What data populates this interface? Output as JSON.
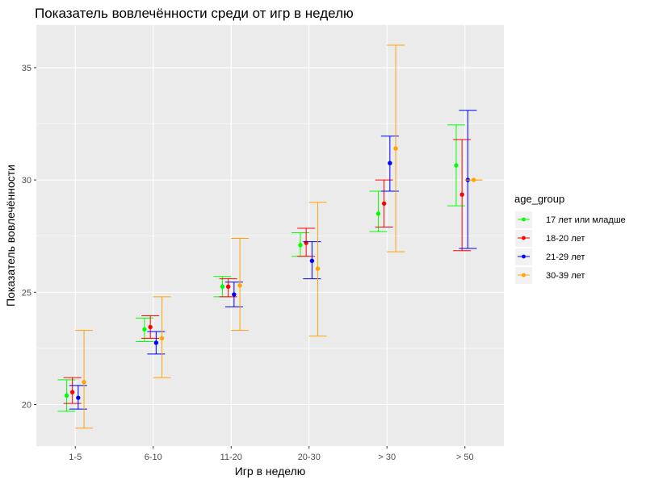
{
  "chart_data": {
    "type": "scatter",
    "title": "Показатель вовлечённости среди от игр в неделю",
    "xlabel": "Игр в неделю",
    "ylabel": "Показатель вовлечённости",
    "categories": [
      "1-5",
      "6-10",
      "11-20",
      "20-30",
      "> 30",
      "> 50"
    ],
    "y_ticks": [
      20,
      25,
      30,
      35
    ],
    "ylim": [
      18.15,
      36.9
    ],
    "grid": true,
    "legend_title": "age_group",
    "legend_position": "right",
    "series": [
      {
        "name": "17 лет или младше",
        "color": "#00ff00",
        "points": [
          {
            "category": "1-5",
            "y": 20.4,
            "lo": 19.7,
            "hi": 21.1
          },
          {
            "category": "6-10",
            "y": 23.35,
            "lo": 22.8,
            "hi": 23.85
          },
          {
            "category": "11-20",
            "y": 25.25,
            "lo": 24.8,
            "hi": 25.7
          },
          {
            "category": "20-30",
            "y": 27.1,
            "lo": 26.6,
            "hi": 27.65
          },
          {
            "category": "> 30",
            "y": 28.5,
            "lo": 27.7,
            "hi": 29.5
          },
          {
            "category": "> 50",
            "y": 30.65,
            "lo": 28.85,
            "hi": 32.45
          }
        ]
      },
      {
        "name": "18-20 лет",
        "color": "#ff0000",
        "points": [
          {
            "category": "1-5",
            "y": 20.55,
            "lo": 20.05,
            "hi": 21.2
          },
          {
            "category": "6-10",
            "y": 23.45,
            "lo": 22.95,
            "hi": 23.95
          },
          {
            "category": "11-20",
            "y": 25.25,
            "lo": 24.8,
            "hi": 25.6
          },
          {
            "category": "20-30",
            "y": 27.2,
            "lo": 26.6,
            "hi": 27.85
          },
          {
            "category": "> 30",
            "y": 28.95,
            "lo": 27.9,
            "hi": 30.0
          },
          {
            "category": "> 50",
            "y": 29.35,
            "lo": 26.85,
            "hi": 31.8
          }
        ]
      },
      {
        "name": "21-29 лет",
        "color": "#0000ff",
        "points": [
          {
            "category": "1-5",
            "y": 20.3,
            "lo": 19.8,
            "hi": 20.85
          },
          {
            "category": "6-10",
            "y": 22.75,
            "lo": 22.25,
            "hi": 23.25
          },
          {
            "category": "11-20",
            "y": 24.9,
            "lo": 24.35,
            "hi": 25.45
          },
          {
            "category": "20-30",
            "y": 26.4,
            "lo": 25.6,
            "hi": 27.25
          },
          {
            "category": "> 30",
            "y": 30.75,
            "lo": 29.5,
            "hi": 31.95
          },
          {
            "category": "> 50",
            "y": 30.0,
            "lo": 26.95,
            "hi": 33.1
          }
        ]
      },
      {
        "name": "30-39 лет",
        "color": "#ffa500",
        "points": [
          {
            "category": "1-5",
            "y": 21.0,
            "lo": 18.95,
            "hi": 23.3
          },
          {
            "category": "6-10",
            "y": 22.95,
            "lo": 21.2,
            "hi": 24.8
          },
          {
            "category": "11-20",
            "y": 25.3,
            "lo": 23.3,
            "hi": 27.4
          },
          {
            "category": "20-30",
            "y": 26.05,
            "lo": 23.05,
            "hi": 29.0
          },
          {
            "category": "> 30",
            "y": 31.4,
            "lo": 26.8,
            "hi": 36.0
          },
          {
            "category": "> 50",
            "y": 30.0,
            "lo": 30.0,
            "hi": 30.0
          }
        ]
      }
    ]
  }
}
